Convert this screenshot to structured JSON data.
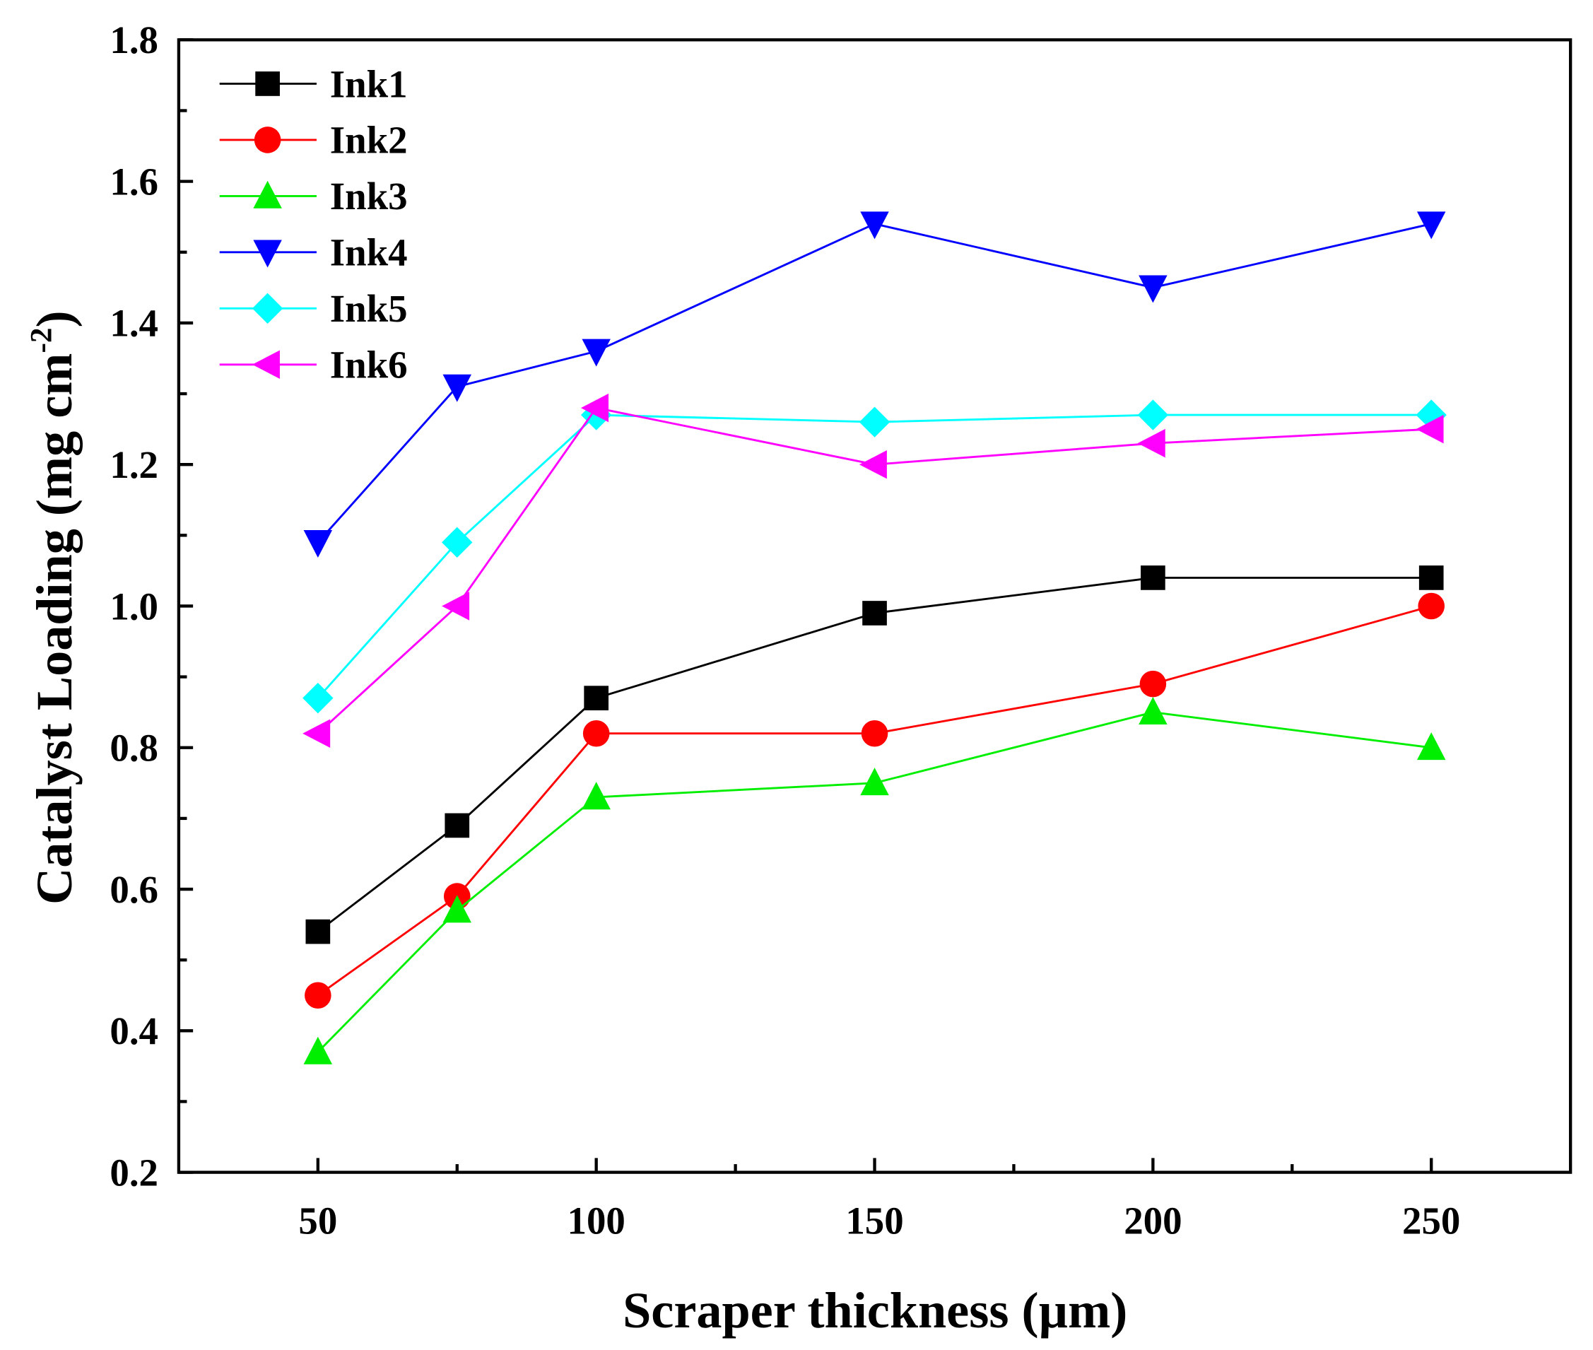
{
  "chart_data": {
    "type": "line",
    "title": "",
    "xlabel": "Scraper thickness (µm)",
    "ylabel": "Catalyst Loading (mg cm",
    "ylabel_sup": "-2",
    "ylabel_close": ")",
    "xlim": [
      25,
      275
    ],
    "ylim": [
      0.2,
      1.8
    ],
    "xticks": [
      50,
      100,
      150,
      200,
      250
    ],
    "xticks_minor": [
      75,
      125,
      175,
      225
    ],
    "yticks": [
      "0.2",
      "0.4",
      "0.6",
      "0.8",
      "1.0",
      "1.2",
      "1.4",
      "1.6",
      "1.8"
    ],
    "grid": false,
    "legend_position": "top-left",
    "x": [
      50,
      75,
      100,
      150,
      200,
      250
    ],
    "series": [
      {
        "name": "Ink1",
        "color": "#000000",
        "marker": "square",
        "values": [
          0.54,
          0.69,
          0.87,
          0.99,
          1.04,
          1.04
        ]
      },
      {
        "name": "Ink2",
        "color": "#ff0000",
        "marker": "circle",
        "values": [
          0.45,
          0.59,
          0.82,
          0.82,
          0.89,
          1.0
        ]
      },
      {
        "name": "Ink3",
        "color": "#00ee00",
        "marker": "triangle-up",
        "values": [
          0.37,
          0.57,
          0.73,
          0.75,
          0.85,
          0.8
        ]
      },
      {
        "name": "Ink4",
        "color": "#0000ff",
        "marker": "triangle-down",
        "values": [
          1.09,
          1.31,
          1.36,
          1.54,
          1.45,
          1.54
        ]
      },
      {
        "name": "Ink5",
        "color": "#00ffff",
        "marker": "diamond",
        "values": [
          0.87,
          1.09,
          1.27,
          1.26,
          1.27,
          1.27
        ]
      },
      {
        "name": "Ink6",
        "color": "#ff00ff",
        "marker": "triangle-left",
        "values": [
          0.82,
          1.0,
          1.28,
          1.2,
          1.23,
          1.25
        ]
      }
    ]
  }
}
